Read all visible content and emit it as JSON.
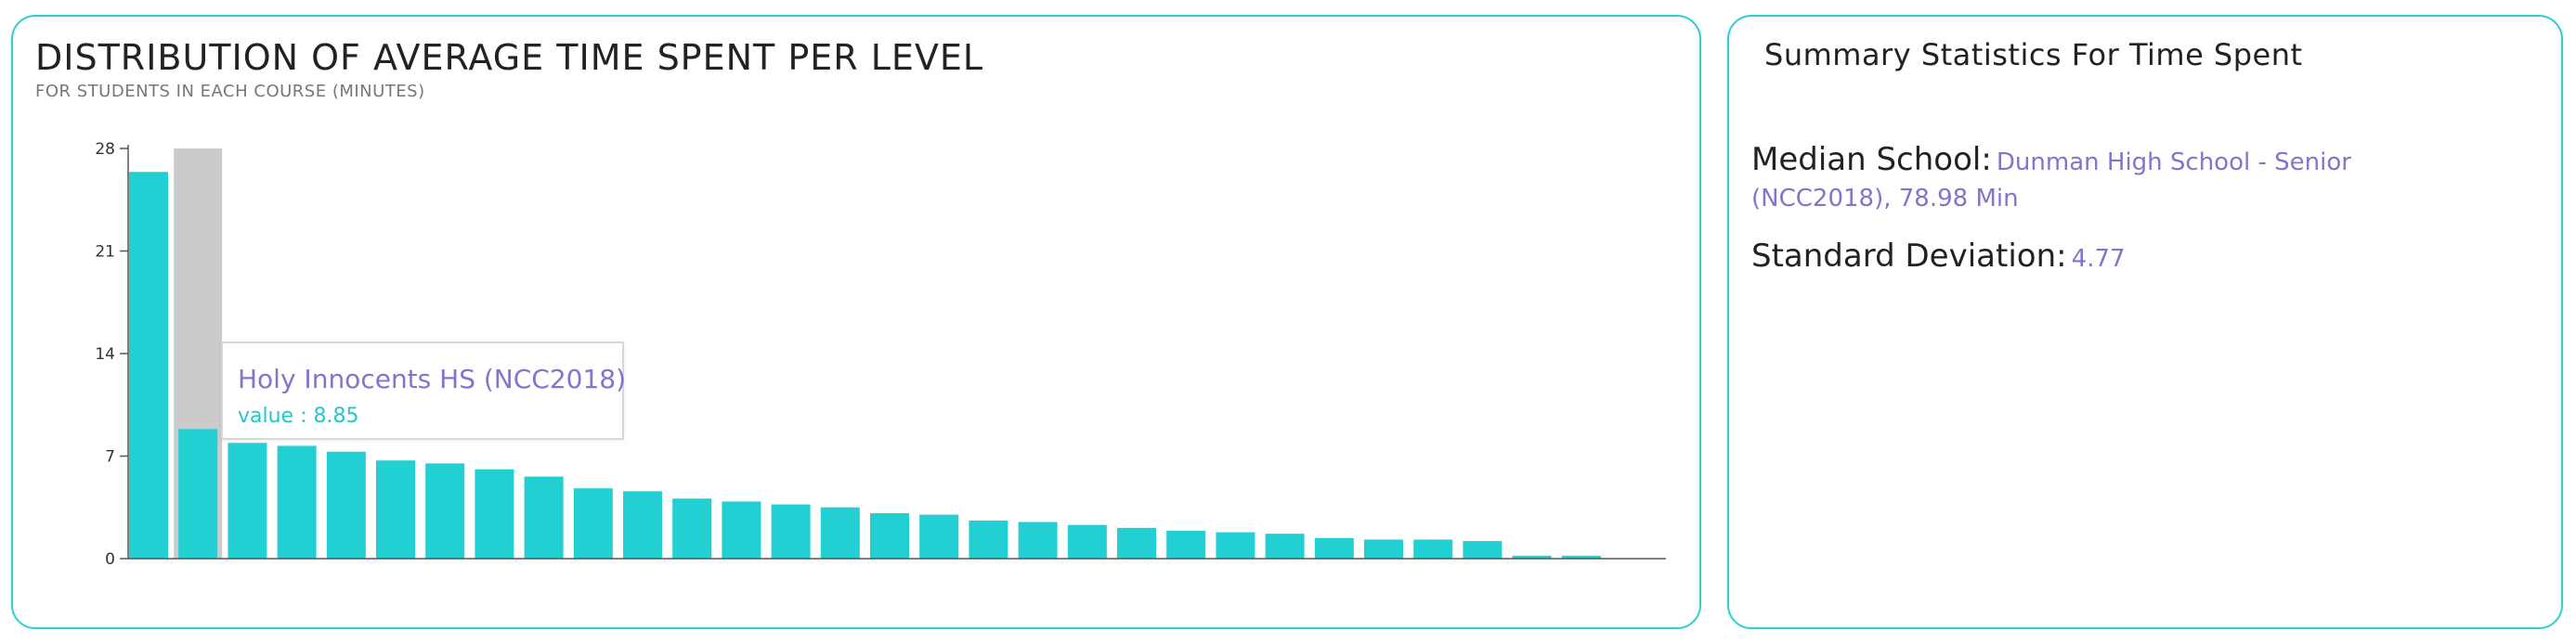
{
  "left_panel": {
    "title": "DISTRIBUTION OF AVERAGE TIME SPENT PER LEVEL",
    "subtitle": "FOR STUDENTS IN EACH COURSE (MINUTES)",
    "tooltip": {
      "name": "Holy Innocents HS (NCC2018)",
      "value_text": "value : 8.85"
    }
  },
  "right_panel": {
    "title": "Summary Statistics For Time Spent",
    "median_label": "Median School:",
    "median_value": "Dunman High School - Senior (NCC2018), 78.98 Min",
    "sd_label": "Standard Deviation:",
    "sd_value": "4.77"
  },
  "colors": {
    "bar": "#22cfd3",
    "hover_background": "#cbcbcb",
    "accent": "#8076cc",
    "border": "#2ccfd2"
  },
  "chart_data": {
    "type": "bar",
    "title": "DISTRIBUTION OF AVERAGE TIME SPENT PER LEVEL",
    "subtitle": "FOR STUDENTS IN EACH COURSE (MINUTES)",
    "xlabel": "",
    "ylabel": "",
    "ylim": [
      0,
      28
    ],
    "yticks": [
      0,
      7,
      14,
      21,
      28
    ],
    "values": [
      26.4,
      8.85,
      7.9,
      7.7,
      7.3,
      6.7,
      6.5,
      6.1,
      5.6,
      4.8,
      4.6,
      4.1,
      3.9,
      3.7,
      3.5,
      3.1,
      3.0,
      2.6,
      2.5,
      2.3,
      2.1,
      1.9,
      1.8,
      1.7,
      1.4,
      1.3,
      1.3,
      1.2,
      0.2,
      0.2
    ],
    "highlighted_index": 1,
    "grid": false
  }
}
